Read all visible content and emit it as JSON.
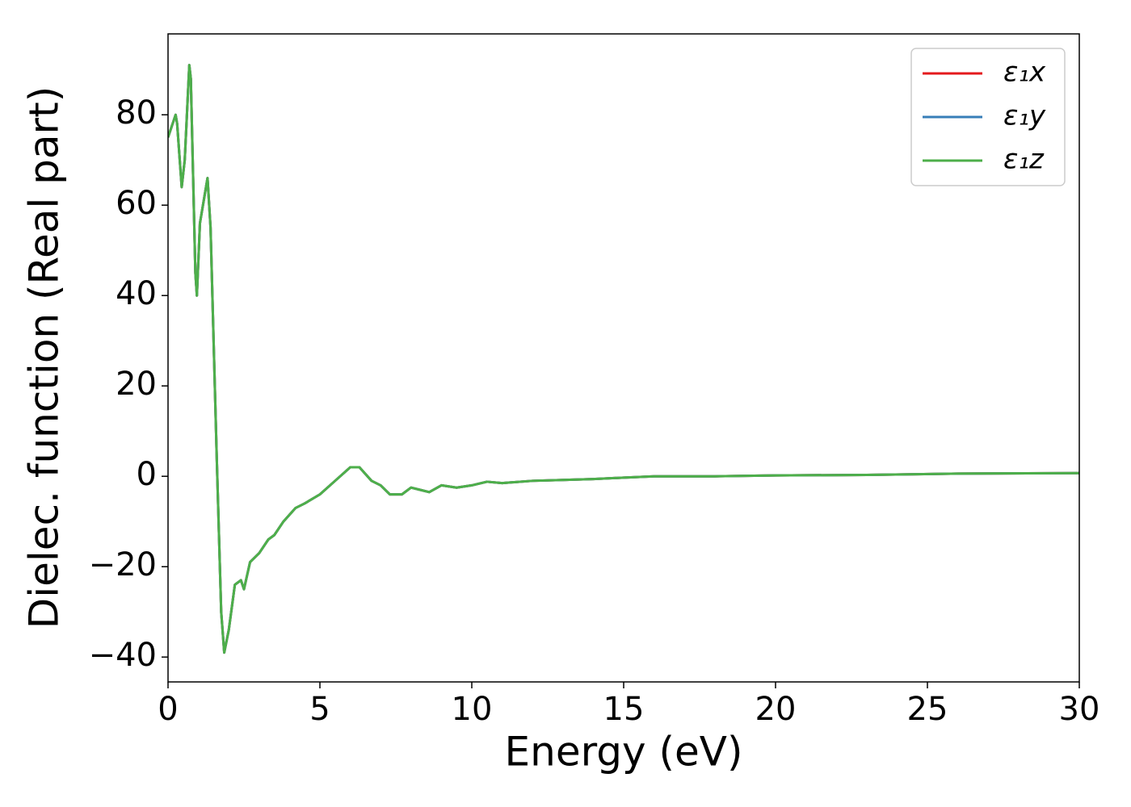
{
  "chart_data": {
    "type": "line",
    "xlabel": "Energy (eV)",
    "ylabel": "Dielec. function (Real part)",
    "x": [
      0,
      0.15,
      0.25,
      0.3,
      0.45,
      0.55,
      0.7,
      0.75,
      0.9,
      0.95,
      1.05,
      1.15,
      1.3,
      1.4,
      1.6,
      1.75,
      1.85,
      2.0,
      2.2,
      2.4,
      2.5,
      2.7,
      3.0,
      3.3,
      3.5,
      3.8,
      4.2,
      4.5,
      5.0,
      5.5,
      6.0,
      6.3,
      6.7,
      7.0,
      7.3,
      7.7,
      8.0,
      8.3,
      8.6,
      9.0,
      9.5,
      10.0,
      10.5,
      11.0,
      12.0,
      13.0,
      14.0,
      15.0,
      16.0,
      18.0,
      20.0,
      23.0,
      26.0,
      30.0
    ],
    "series": [
      {
        "name": "ε₁x",
        "color": "#e41a1c",
        "values": [
          75,
          78,
          80,
          78,
          64,
          70,
          91,
          88,
          45,
          40,
          56,
          60,
          66,
          55,
          5,
          -30,
          -39,
          -34,
          -24,
          -23,
          -25,
          -19,
          -17,
          -14,
          -13,
          -10,
          -7,
          -6,
          -4,
          -1,
          2,
          2,
          -1,
          -2,
          -4,
          -4,
          -2.5,
          -3,
          -3.5,
          -2,
          -2.5,
          -2,
          -1.2,
          -1.5,
          -1,
          -0.8,
          -0.6,
          -0.3,
          0,
          0,
          0.2,
          0.3,
          0.6,
          0.7
        ]
      },
      {
        "name": "ε₁y",
        "color": "#377eb8",
        "values": [
          75,
          78,
          80,
          78,
          64,
          70,
          91,
          88,
          45,
          40,
          56,
          60,
          66,
          55,
          5,
          -30,
          -39,
          -34,
          -24,
          -23,
          -25,
          -19,
          -17,
          -14,
          -13,
          -10,
          -7,
          -6,
          -4,
          -1,
          2,
          2,
          -1,
          -2,
          -4,
          -4,
          -2.5,
          -3,
          -3.5,
          -2,
          -2.5,
          -2,
          -1.2,
          -1.5,
          -1,
          -0.8,
          -0.6,
          -0.3,
          0,
          0,
          0.2,
          0.3,
          0.6,
          0.7
        ]
      },
      {
        "name": "ε₁z",
        "color": "#4daf4a",
        "values": [
          75,
          78,
          80,
          78,
          64,
          70,
          91,
          88,
          45,
          40,
          56,
          60,
          66,
          55,
          5,
          -30,
          -39,
          -34,
          -24,
          -23,
          -25,
          -19,
          -17,
          -14,
          -13,
          -10,
          -7,
          -6,
          -4,
          -1,
          2,
          2,
          -1,
          -2,
          -4,
          -4,
          -2.5,
          -3,
          -3.5,
          -2,
          -2.5,
          -2,
          -1.2,
          -1.5,
          -1,
          -0.8,
          -0.6,
          -0.3,
          0,
          0,
          0.2,
          0.3,
          0.6,
          0.7
        ]
      }
    ],
    "xlim": [
      0,
      30
    ],
    "xticks": [
      0,
      5,
      10,
      15,
      20,
      25,
      30
    ],
    "ylim": [
      -45.5,
      97.9
    ],
    "yticks": [
      {
        "value": -40,
        "label": "−40"
      },
      {
        "value": -20,
        "label": "−20"
      },
      0,
      20,
      40,
      60,
      80
    ],
    "legend": "upper right"
  }
}
